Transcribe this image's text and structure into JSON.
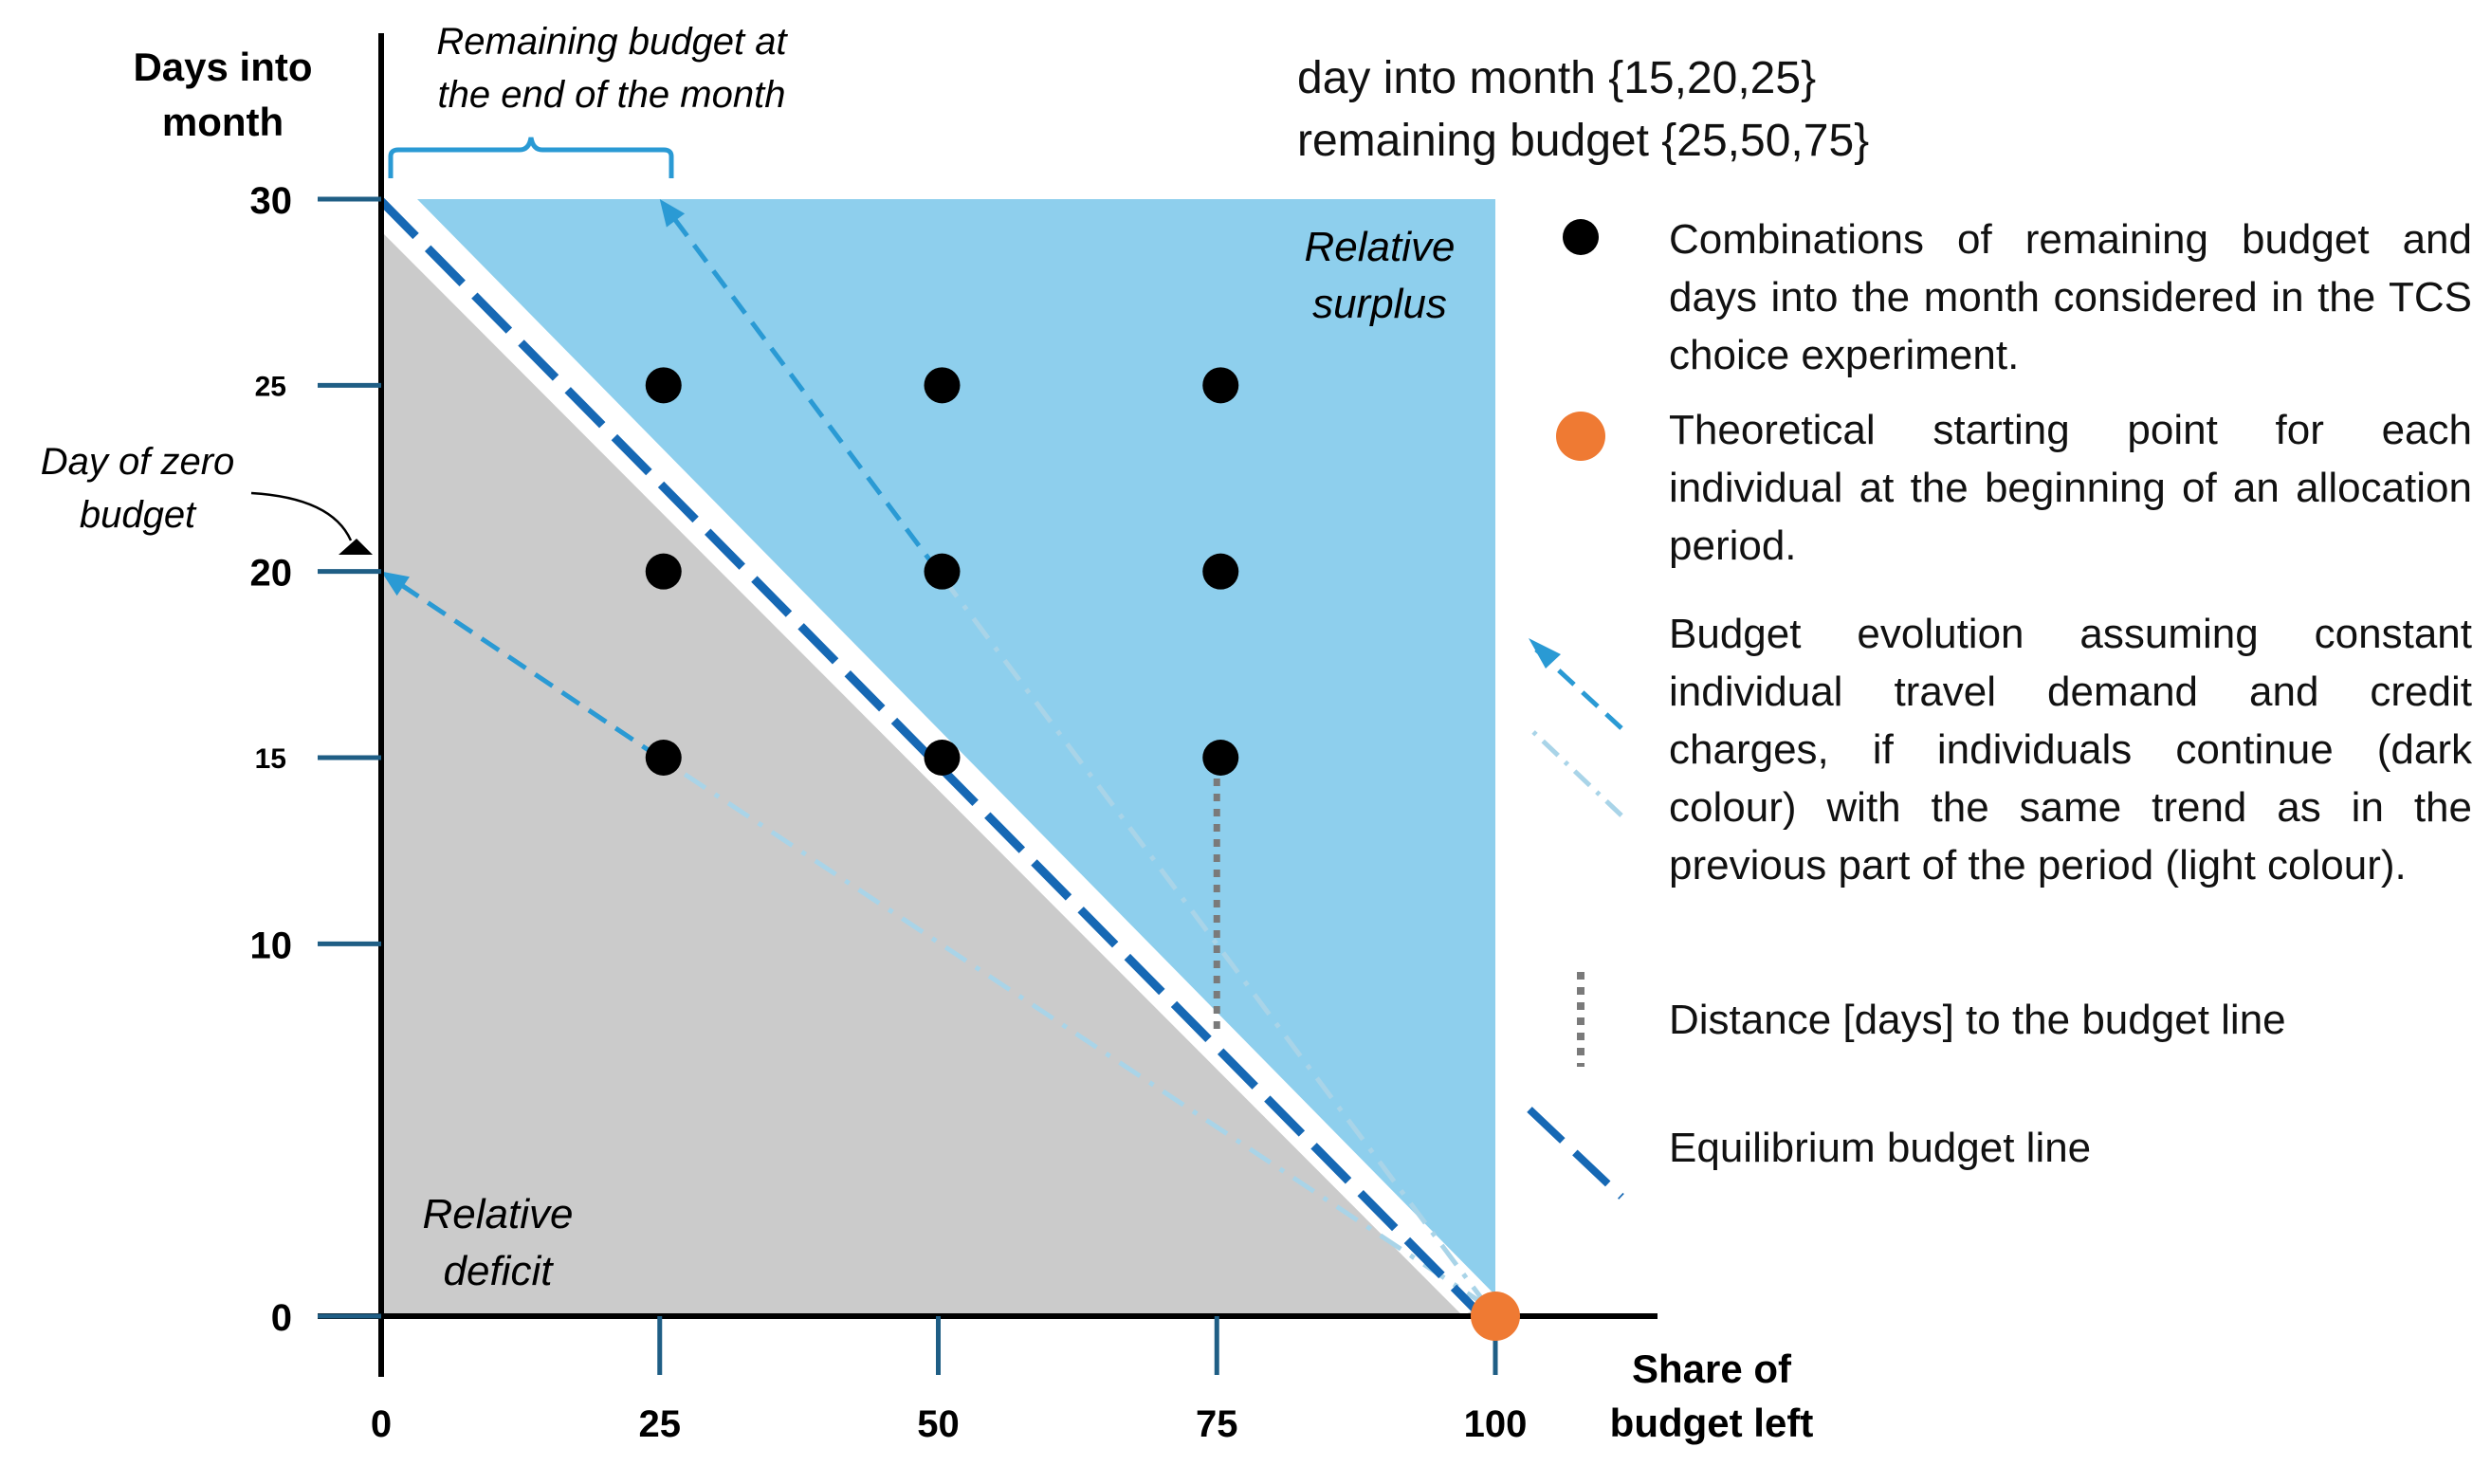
{
  "axes": {
    "y_title_line1": "Days into",
    "y_title_line2": "month",
    "x_title_line1": "Share of",
    "x_title_line2": "budget left",
    "y_ticks": [
      "0",
      "10",
      "15",
      "20",
      "25",
      "30"
    ],
    "x_ticks": [
      "0",
      "25",
      "50",
      "75",
      "100"
    ]
  },
  "annotations": {
    "remaining_line1": "Remaining budget at",
    "remaining_line2": "the end of the month",
    "zero_day_line1": "Day of zero",
    "zero_day_line2": "budget",
    "surplus_line1": "Relative",
    "surplus_line2": "surplus",
    "deficit_line1": "Relative",
    "deficit_line2": "deficit"
  },
  "top_note": {
    "line1": "day into month {15,20,25}",
    "line2": "remaining budget {25,50,75}"
  },
  "legend": {
    "combinations": "Combinations of remaining budget and days into the month considered in the TCS choice experiment.",
    "starting_point": "Theoretical starting point for each individual at the beginning of an allocation period.",
    "evolution": "Budget evolution assuming constant individual travel demand and credit charges, if individuals continue (dark colour) with the same trend as in the previous part of the period (light colour).",
    "distance": "Distance [days] to the budget line",
    "equilibrium": "Equilibrium budget line"
  },
  "colors": {
    "surplus_fill": "#8ecfed",
    "deficit_fill": "#cbcbcb",
    "equilibrium_line": "#1668b4",
    "trend_dark": "#2a9ad4",
    "trend_light": "#a9d4e8",
    "axis_tick": "#1f5e85",
    "start_point": "#ef7a33",
    "combo_point": "#000000",
    "distance_marker": "#7a7a7a"
  },
  "chart_data": {
    "type": "scatter",
    "xlabel": "Share of budget left",
    "ylabel": "Days into month",
    "xlim": [
      0,
      100
    ],
    "ylim": [
      0,
      30
    ],
    "combinations": [
      {
        "x": 25,
        "y": 15
      },
      {
        "x": 50,
        "y": 15
      },
      {
        "x": 75,
        "y": 15
      },
      {
        "x": 25,
        "y": 20
      },
      {
        "x": 50,
        "y": 20
      },
      {
        "x": 75,
        "y": 20
      },
      {
        "x": 25,
        "y": 25
      },
      {
        "x": 50,
        "y": 25
      },
      {
        "x": 75,
        "y": 25
      }
    ],
    "starting_point": {
      "x": 100,
      "y": 0
    },
    "equilibrium_line": [
      {
        "x": 0,
        "y": 30
      },
      {
        "x": 100,
        "y": 0
      }
    ],
    "trend_lines": [
      {
        "from": {
          "x": 100,
          "y": 0
        },
        "through": {
          "x": 25,
          "y": 15
        },
        "to": {
          "x": 0,
          "y": 20
        }
      },
      {
        "from": {
          "x": 100,
          "y": 0
        },
        "through": {
          "x": 50,
          "y": 20
        },
        "to": {
          "x": 25,
          "y": 30
        }
      }
    ],
    "distance_marker": {
      "x": 75,
      "y_from": 15,
      "y_to": 7.5
    }
  }
}
